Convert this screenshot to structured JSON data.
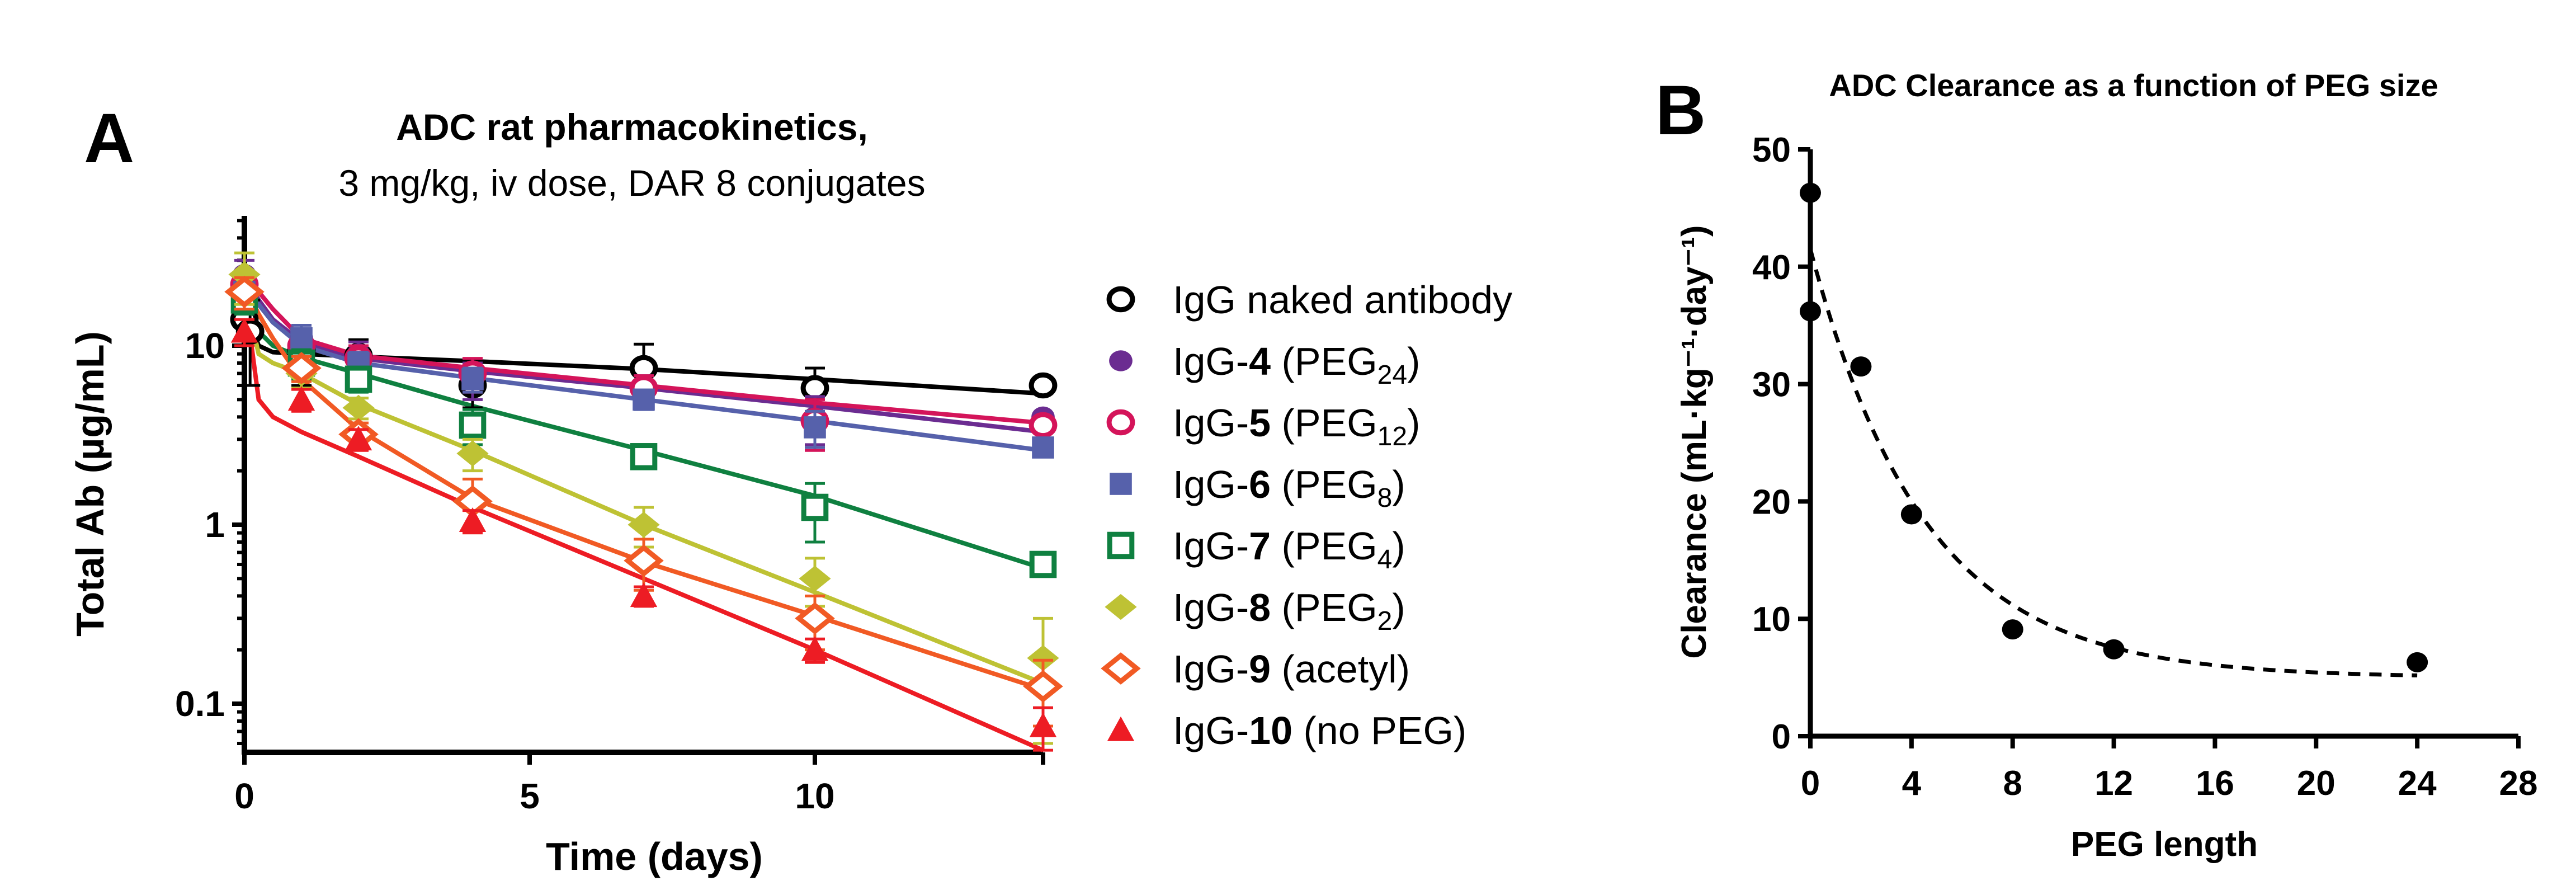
{
  "chart_data": [
    {
      "panel_label": "A",
      "type": "line",
      "title": "ADC rat pharmacokinetics,",
      "subtitle": "3 mg/kg, iv dose, DAR 8 conjugates",
      "xlabel": "Time (days)",
      "ylabel": "Total Ab (µg/mL)",
      "xlim": [
        0,
        14
      ],
      "ylim": [
        0.05,
        50
      ],
      "yscale": "log",
      "grid": false,
      "legend_placement": "right",
      "x_ticks": [
        "0",
        "5",
        "10"
      ],
      "y_ticks": [
        "0.1",
        "1",
        "10"
      ],
      "x_tick_values": [
        0,
        5,
        10
      ],
      "y_tick_values": [
        0.1,
        1,
        10
      ],
      "fit_x": [
        0,
        0.25,
        0.5,
        1,
        2,
        4,
        7,
        10,
        14
      ],
      "series": [
        {
          "name": "IgG naked antibody",
          "label_parts": [
            [
              "IgG naked antibody",
              "n"
            ]
          ],
          "color": "#000000",
          "marker": "circle-open",
          "x": [
            0,
            0.1,
            1,
            2,
            4,
            7,
            10,
            14
          ],
          "y": [
            14,
            12,
            9.5,
            8.8,
            6.0,
            7.5,
            5.8,
            6.0
          ],
          "err": [
            4,
            6,
            3.5,
            2,
            1.5,
            2.7,
            1.7,
            0
          ],
          "fit": [
            17,
            10,
            9.2,
            9.0,
            8.7,
            8.2,
            7.4,
            6.5,
            5.4
          ]
        },
        {
          "name": "IgG-4 (PEG24)",
          "label_parts": [
            [
              "IgG-",
              "n"
            ],
            [
              "4",
              "b"
            ],
            [
              " (PEG",
              "n"
            ],
            [
              "24",
              "s"
            ],
            [
              ")",
              "n"
            ]
          ],
          "color": "#6b2c91",
          "marker": "circle",
          "x": [
            0,
            1,
            2,
            4,
            7,
            10,
            14
          ],
          "y": [
            25,
            11,
            9.0,
            6.5,
            5.8,
            4.0,
            4.0
          ],
          "err": [
            5,
            2,
            1.5,
            1.5,
            1,
            1.2,
            0
          ],
          "fit": [
            25,
            18,
            14,
            10.5,
            8.5,
            7.2,
            5.8,
            4.6,
            3.3
          ]
        },
        {
          "name": "IgG-5 (PEG12)",
          "label_parts": [
            [
              "IgG-",
              "n"
            ],
            [
              "5",
              "b"
            ],
            [
              " (PEG",
              "n"
            ],
            [
              "12",
              "s"
            ],
            [
              ")",
              "n"
            ]
          ],
          "color": "#d4145a",
          "marker": "circle-open",
          "x": [
            0,
            1,
            2,
            4,
            7,
            10,
            14
          ],
          "y": [
            22,
            10,
            8.5,
            7.0,
            5.8,
            3.8,
            3.6
          ],
          "err": [
            4,
            2,
            1.5,
            1.5,
            1,
            1.2,
            0
          ],
          "fit": [
            26,
            20,
            16,
            11,
            8.8,
            7.5,
            6.0,
            4.8,
            3.7
          ]
        },
        {
          "name": "IgG-6 (PEG8)",
          "label_parts": [
            [
              "IgG-",
              "n"
            ],
            [
              "6",
              "b"
            ],
            [
              " (PEG",
              "n"
            ],
            [
              "8",
              "s"
            ],
            [
              ")",
              "n"
            ]
          ],
          "color": "#5661ab",
          "marker": "square",
          "x": [
            0,
            1,
            2,
            4,
            7,
            10,
            14
          ],
          "y": [
            20,
            11,
            8.0,
            6.5,
            5.0,
            3.5,
            2.7
          ],
          "err": [
            4,
            2,
            1.2,
            1,
            0.6,
            0.8,
            0
          ],
          "fit": [
            22,
            17,
            13.5,
            10,
            8.0,
            6.6,
            5.0,
            3.8,
            2.6
          ]
        },
        {
          "name": "IgG-7 (PEG4)",
          "label_parts": [
            [
              "IgG-",
              "n"
            ],
            [
              "7",
              "b"
            ],
            [
              " (PEG",
              "n"
            ],
            [
              "4",
              "s"
            ],
            [
              ")",
              "n"
            ]
          ],
          "color": "#0f8040",
          "marker": "square-open",
          "x": [
            0,
            1,
            2,
            4,
            7,
            10,
            14
          ],
          "y": [
            18,
            8.0,
            6.5,
            3.6,
            2.4,
            1.25,
            0.6
          ],
          "err": [
            3,
            1.5,
            1,
            0.8,
            0.2,
            0.45,
            0
          ],
          "fit": [
            20,
            12,
            10,
            8.6,
            7.0,
            4.6,
            2.6,
            1.45,
            0.57
          ]
        },
        {
          "name": "IgG-8 (PEG2)",
          "label_parts": [
            [
              "IgG-",
              "n"
            ],
            [
              "8",
              "b"
            ],
            [
              " (PEG",
              "n"
            ],
            [
              "2",
              "s"
            ],
            [
              ")",
              "n"
            ]
          ],
          "color": "#bec234",
          "marker": "diamond",
          "x": [
            0,
            1,
            2,
            4,
            7,
            10,
            14
          ],
          "y": [
            25,
            7.0,
            4.5,
            2.5,
            1.0,
            0.5,
            0.18
          ],
          "err": [
            8,
            1.2,
            0.6,
            0.5,
            0.25,
            0.15,
            0.12
          ],
          "fit": [
            20,
            9.0,
            8.0,
            7.0,
            4.7,
            2.6,
            1.0,
            0.42,
            0.13
          ]
        },
        {
          "name": "IgG-9 (acetyl)",
          "label_parts": [
            [
              "IgG-",
              "n"
            ],
            [
              "9",
              "b"
            ],
            [
              " (acetyl)",
              "n"
            ]
          ],
          "color": "#f15a24",
          "marker": "diamond-open",
          "x": [
            0,
            1,
            2,
            4,
            7,
            10,
            14
          ],
          "y": [
            20,
            7.5,
            3.2,
            1.35,
            0.63,
            0.3,
            0.125
          ],
          "err": [
            4,
            1.2,
            0.5,
            0.45,
            0.2,
            0.1,
            0.05
          ],
          "fit": [
            22,
            15,
            11,
            6.5,
            3.4,
            1.4,
            0.62,
            0.31,
            0.12
          ]
        },
        {
          "name": "IgG-10 (no PEG)",
          "label_parts": [
            [
              "IgG-",
              "n"
            ],
            [
              "10",
              "b"
            ],
            [
              " (no PEG)",
              "n"
            ]
          ],
          "color": "#ed1c24",
          "marker": "triangle",
          "x": [
            0,
            1,
            2,
            4,
            7,
            10,
            14
          ],
          "y": [
            12,
            5.0,
            3.0,
            1.05,
            0.4,
            0.2,
            0.075
          ],
          "err": [
            2,
            0.7,
            0.4,
            0.15,
            0.05,
            0.03,
            0.02
          ],
          "fit": [
            20,
            5.0,
            4.0,
            3.3,
            2.4,
            1.25,
            0.5,
            0.2,
            0.055
          ]
        }
      ]
    },
    {
      "panel_label": "B",
      "type": "scatter",
      "title": "ADC Clearance as a function of PEG size",
      "xlabel": "PEG length",
      "ylabel": "Clearance (mL·kg⁻¹·day⁻¹)",
      "xlim": [
        0,
        28
      ],
      "ylim": [
        0,
        50
      ],
      "grid": false,
      "x_ticks": [
        "0",
        "4",
        "8",
        "12",
        "16",
        "20",
        "24",
        "28"
      ],
      "x_tick_values": [
        0,
        4,
        8,
        12,
        16,
        20,
        24,
        28
      ],
      "y_ticks": [
        "0",
        "10",
        "20",
        "30",
        "40",
        "50"
      ],
      "y_tick_values": [
        0,
        10,
        20,
        30,
        40,
        50
      ],
      "points": {
        "x": [
          0,
          0,
          2,
          4,
          8,
          12,
          24
        ],
        "y": [
          46.3,
          36.2,
          31.5,
          18.9,
          9.1,
          7.4,
          6.3
        ]
      },
      "fit": {
        "style": "dashed",
        "model": "one-phase decay",
        "plateau": 5.0,
        "span": 36.5,
        "k": 0.222,
        "x_range": [
          0,
          24
        ]
      },
      "marker_color": "#000000"
    }
  ]
}
